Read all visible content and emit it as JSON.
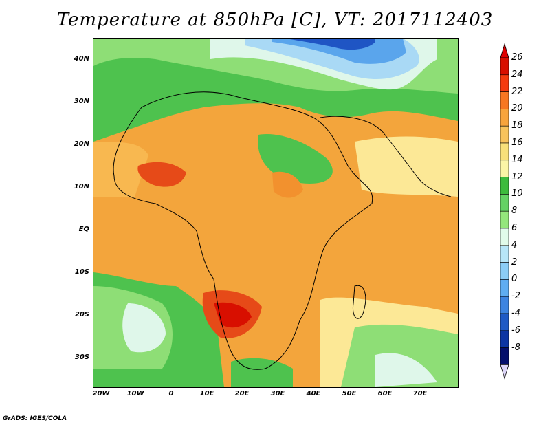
{
  "title": "Temperature at 850hPa [C], VT: 2017112403",
  "credit": "GrADS: IGES/COLA",
  "lat_labels": [
    "40N",
    "30N",
    "20N",
    "10N",
    "EQ",
    "10S",
    "20S",
    "30S"
  ],
  "lon_labels": [
    "20W",
    "10W",
    "0",
    "10E",
    "20E",
    "30E",
    "40E",
    "50E",
    "60E",
    "70E"
  ],
  "colorbar": {
    "labels": [
      "26",
      "24",
      "22",
      "20",
      "18",
      "16",
      "14",
      "12",
      "10",
      "8",
      "6",
      "4",
      "2",
      "0",
      "-2",
      "-4",
      "-6",
      "-8"
    ],
    "colors": [
      "#d80f00",
      "#f43b0f",
      "#f77722",
      "#f8a43c",
      "#f8c35c",
      "#f8e07a",
      "#fbf5a6",
      "#3dbb3d",
      "#64d264",
      "#94e67c",
      "#e1fbea",
      "#b7e6f8",
      "#8ccdf6",
      "#5fadf2",
      "#3d84e1",
      "#1f5ac5",
      "#0c35a3",
      "#040f6c"
    ]
  },
  "map_colors": {
    "hot": "#e64a18",
    "warm": "#f2912e",
    "mild": "#f8b850",
    "cool": "#fce896",
    "green": "#4ec24e",
    "lightgreen": "#8ede76",
    "pale": "#dff7ea",
    "lightblue": "#a9d9f5",
    "blue": "#5aa5ec",
    "darkblue": "#1f55c4"
  }
}
